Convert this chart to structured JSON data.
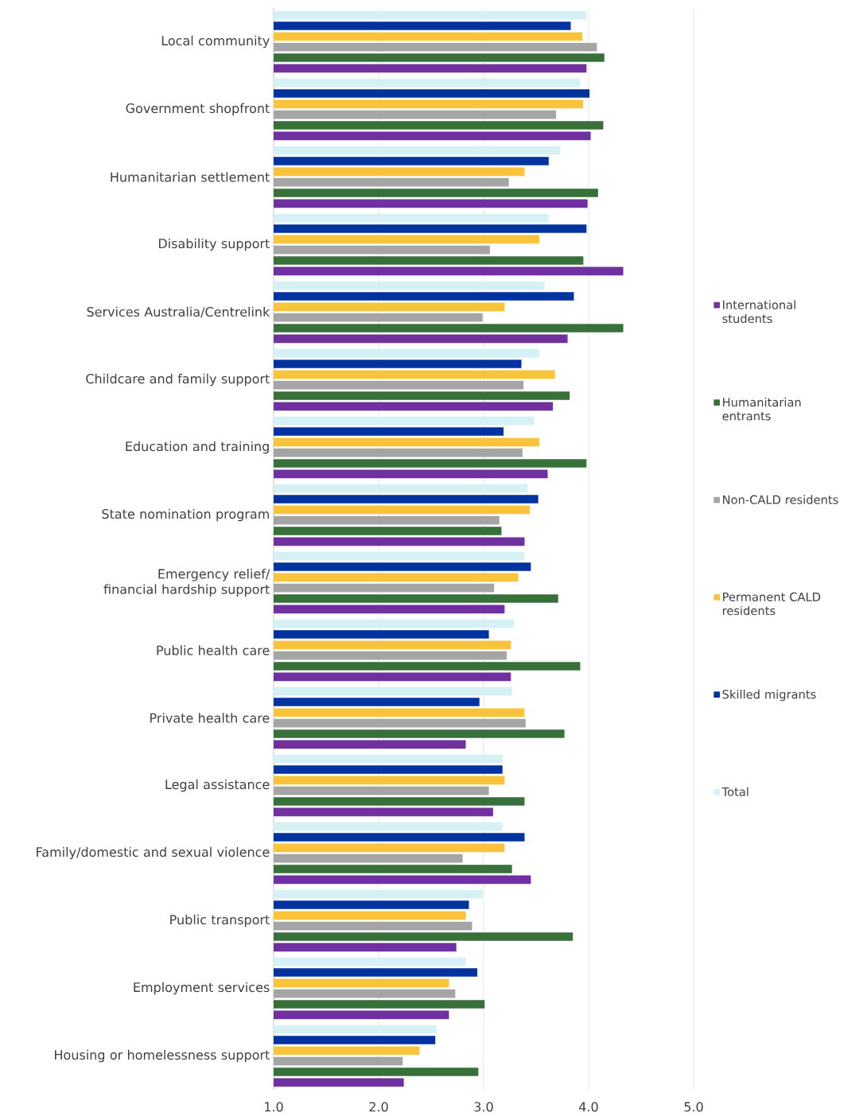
{
  "chart_data": {
    "type": "bar",
    "orientation": "horizontal",
    "categories": [
      "Local community",
      "Government shopfront",
      "Humanitarian settlement",
      "Disability support",
      "Services Australia/Centrelink",
      "Childcare and family support",
      "Education and training",
      "State nomination program",
      "Emergency relief/ financial hardship support",
      "Public health care",
      "Private health care",
      "Legal assistance",
      "Family/domestic and sexual violence",
      "Public transport",
      "Employment services",
      "Housing or homelessness support"
    ],
    "series": [
      {
        "name": "International students",
        "color": "#7030a0",
        "values": [
          3.98,
          4.02,
          3.99,
          4.33,
          3.8,
          3.66,
          3.61,
          3.39,
          3.2,
          3.26,
          2.83,
          3.09,
          3.45,
          2.74,
          2.67,
          2.24
        ]
      },
      {
        "name": "Humanitarian entrants",
        "color": "#38703a",
        "values": [
          4.15,
          4.14,
          4.09,
          3.95,
          4.33,
          3.82,
          3.98,
          3.17,
          3.71,
          3.92,
          3.77,
          3.39,
          3.27,
          3.85,
          3.01,
          2.95
        ]
      },
      {
        "name": "Non-CALD residents",
        "color": "#a5a5a5",
        "values": [
          4.08,
          3.69,
          3.24,
          3.06,
          2.99,
          3.38,
          3.37,
          3.15,
          3.1,
          3.22,
          3.4,
          3.05,
          2.8,
          2.89,
          2.73,
          2.23
        ]
      },
      {
        "name": "Permanent CALD residents",
        "color": "#f9c43c",
        "values": [
          3.94,
          3.95,
          3.39,
          3.53,
          3.2,
          3.68,
          3.53,
          3.44,
          3.33,
          3.26,
          3.39,
          3.2,
          3.2,
          2.83,
          2.67,
          2.39
        ]
      },
      {
        "name": "Skilled migrants",
        "color": "#0033a0",
        "values": [
          3.83,
          4.01,
          3.62,
          3.98,
          3.86,
          3.36,
          3.19,
          3.52,
          3.45,
          3.05,
          2.96,
          3.18,
          3.39,
          2.86,
          2.94,
          2.54
        ]
      },
      {
        "name": "Total",
        "color": "#d6f1f5",
        "values": [
          3.98,
          3.92,
          3.73,
          3.62,
          3.58,
          3.53,
          3.48,
          3.42,
          3.39,
          3.29,
          3.27,
          3.18,
          3.18,
          2.99,
          2.83,
          2.55
        ]
      }
    ],
    "xlim": [
      1,
      5
    ],
    "xticks": [
      {
        "value": 1,
        "label": "1.0"
      },
      {
        "value": 2,
        "label": "2.0"
      },
      {
        "value": 3,
        "label": "3.0"
      },
      {
        "value": 4,
        "label": "4.0"
      },
      {
        "value": 5,
        "label": "5.0"
      }
    ],
    "grid": "x",
    "legend": "right"
  }
}
